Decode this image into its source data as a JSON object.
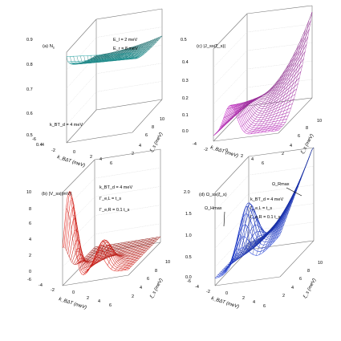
{
  "chart_data": [
    {
      "type": "surface",
      "panel": "(a)",
      "zlabel": "N",
      "zlabel_sub": "s",
      "xlabel": "k_BΔT (meV)",
      "ylabel": "ξ_s (meV)",
      "x_ticks": [
        "-6",
        "-4",
        "-2",
        "0",
        "2",
        "4",
        "6"
      ],
      "y_ticks": [
        "2",
        "4",
        "6",
        "8",
        "10"
      ],
      "z_ticks": [
        "0.4",
        "0.5",
        "0.6",
        "0.7",
        "0.8",
        "0.9"
      ],
      "xlim": [
        -6,
        6
      ],
      "ylim": [
        2,
        10
      ],
      "zlim": [
        0.4,
        0.9
      ],
      "annotations": [
        "E_l = 2 meV",
        "E_r = 8 meV",
        "k_BT_d = 4 meV"
      ],
      "color": "#2aa9a9",
      "grid": true
    },
    {
      "type": "surface",
      "panel": "(c)",
      "zlabel": "|J_ss(ξ_s)|",
      "xlabel": "k_BΔT (meV)",
      "ylabel": "ξ_s (meV)",
      "x_ticks": [
        "-4",
        "-2",
        "0",
        "2",
        "4",
        "6"
      ],
      "y_ticks": [
        "2",
        "4",
        "6",
        "8",
        "10"
      ],
      "z_ticks": [
        "0.0",
        "0.1",
        "0.2",
        "0.3",
        "0.4",
        "0.5"
      ],
      "xlim": [
        -6,
        6
      ],
      "ylim": [
        2,
        10
      ],
      "zlim": [
        0,
        0.5
      ],
      "color": "#cc33cc",
      "grid": true
    },
    {
      "type": "surface",
      "panel": "(b)",
      "zlabel": "|V_ss|(mV)",
      "xlabel": "k_BΔT (meV)",
      "ylabel": "ξ_s (meV)",
      "x_ticks": [
        "-6",
        "-4",
        "-2",
        "0",
        "2",
        "4",
        "6"
      ],
      "y_ticks": [
        "2",
        "4",
        "6",
        "8",
        "10"
      ],
      "z_ticks": [
        "0",
        "2",
        "4",
        "6",
        "8",
        "10"
      ],
      "xlim": [
        -6,
        6
      ],
      "ylim": [
        2,
        10
      ],
      "zlim": [
        0,
        10
      ],
      "annotations": [
        "k_BT_d = 4 meV",
        "Γ_e,L = t_s",
        "Γ_e,R = 0.1 t_s"
      ],
      "color": "#e8261e",
      "grid": true
    },
    {
      "type": "surface",
      "panel": "(d)",
      "zlabel": "Ω_ss(ξ_s)",
      "xlabel": "k_BΔT (meV)",
      "ylabel": "ξ_s (meV)",
      "x_ticks": [
        "-6",
        "-4",
        "-2",
        "0",
        "2",
        "4",
        "6"
      ],
      "y_ticks": [
        "2",
        "4",
        "6",
        "8",
        "10"
      ],
      "z_ticks": [
        "0.0",
        "0.5",
        "1.0",
        "1.5",
        "2.0"
      ],
      "xlim": [
        -6,
        6
      ],
      "ylim": [
        2,
        10
      ],
      "zlim": [
        0,
        2
      ],
      "annotations": [
        "Ω_Hmax",
        "Ω_Rmax",
        "k_BT_d = 4 meV",
        "Γ_e,L = t_s",
        "Γ_e,R = 0.1 t_s"
      ],
      "color": "#1f3fe0",
      "grid": true
    }
  ]
}
